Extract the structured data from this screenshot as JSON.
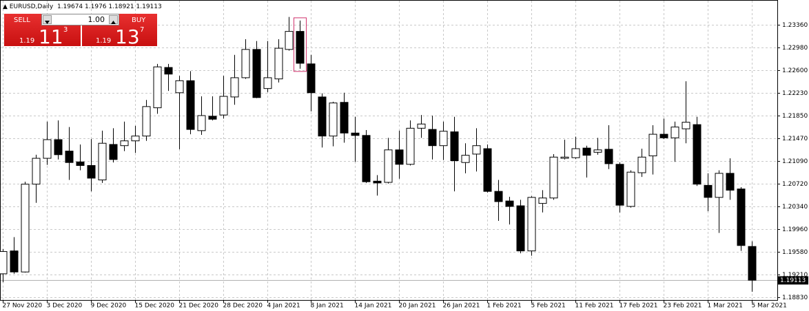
{
  "header": {
    "symbol": "EURUSD,Daily"
  },
  "trade_panel": {
    "sell": "SELL",
    "buy": "BUY",
    "lot": "1.00",
    "sell_price": {
      "prefix": "1.19",
      "big": "11",
      "small": "3"
    },
    "buy_price": {
      "prefix": "1.19",
      "big": "13",
      "small": "7"
    }
  },
  "chart_data": {
    "type": "candlestick",
    "categories": [
      "27 Nov 2020",
      null,
      null,
      null,
      "3 Dec 2020",
      null,
      null,
      null,
      "9 Dec 2020",
      null,
      null,
      null,
      "15 Dec 2020",
      null,
      null,
      null,
      "21 Dec 2020",
      null,
      null,
      null,
      "28 Dec 2020",
      null,
      null,
      null,
      "4 Jan 2021",
      null,
      null,
      null,
      "8 Jan 2021",
      null,
      null,
      null,
      "14 Jan 2021",
      null,
      null,
      null,
      "20 Jan 2021",
      null,
      null,
      null,
      "26 Jan 2021",
      null,
      null,
      null,
      "1 Feb 2021",
      null,
      null,
      null,
      "5 Feb 2021",
      null,
      null,
      null,
      "11 Feb 2021",
      null,
      null,
      null,
      "17 Feb 2021",
      null,
      null,
      null,
      "23 Feb 2021",
      null,
      null,
      null,
      "1 Mar 2021",
      null,
      null,
      null,
      "5 Mar 2021"
    ],
    "open": [
      1.1922,
      1.196,
      1.1925,
      1.2071,
      1.2114,
      1.2145,
      1.2126,
      1.2108,
      1.2102,
      1.2078,
      1.2137,
      1.2135,
      1.2143,
      1.2151,
      1.2198,
      1.2265,
      1.2223,
      1.2243,
      1.216,
      1.2184,
      1.2186,
      1.2216,
      1.2248,
      1.2295,
      1.223,
      1.2246,
      1.2295,
      1.2325,
      1.2271,
      1.2216,
      1.2151,
      1.2207,
      1.2156,
      1.2152,
      1.2076,
      1.2074,
      1.2128,
      1.2104,
      1.2164,
      1.2162,
      1.2135,
      1.2158,
      1.2107,
      1.2121,
      1.213,
      1.2059,
      1.2043,
      1.2035,
      1.196,
      1.2039,
      1.2048,
      1.2114,
      1.2115,
      1.2131,
      1.2124,
      1.2129,
      1.2104,
      1.2034,
      1.209,
      1.2118,
      1.2154,
      1.2148,
      1.2163,
      1.217,
      1.2069,
      1.2049,
      1.2089,
      1.2063,
      1.19674
    ],
    "high": [
      1.1963,
      1.1983,
      1.2075,
      1.212,
      1.2175,
      1.2177,
      1.2166,
      1.2137,
      1.2146,
      1.216,
      1.2164,
      1.2175,
      1.2168,
      1.2211,
      1.2271,
      1.2271,
      1.2251,
      1.2259,
      1.2217,
      1.2217,
      1.2251,
      1.2286,
      1.2312,
      1.2309,
      1.2309,
      1.2312,
      1.2349,
      1.2343,
      1.2286,
      1.2222,
      1.2208,
      1.2223,
      1.2183,
      1.2161,
      1.2086,
      1.2148,
      1.216,
      1.2177,
      1.2186,
      1.2185,
      1.2175,
      1.2183,
      1.2139,
      1.2164,
      1.2137,
      1.2078,
      1.205,
      1.2045,
      1.2051,
      1.2061,
      1.2121,
      1.2145,
      1.215,
      1.2135,
      1.2148,
      1.2169,
      1.2107,
      1.2094,
      1.213,
      1.2169,
      1.218,
      1.2175,
      1.2242,
      1.2183,
      1.2089,
      1.2094,
      1.2114,
      1.2066,
      1.1976
    ],
    "low": [
      1.1908,
      1.1922,
      1.1924,
      1.204,
      1.2103,
      1.2112,
      1.2078,
      1.2094,
      1.2059,
      1.2073,
      1.2107,
      1.2126,
      1.2123,
      1.2143,
      1.2188,
      1.2226,
      1.2129,
      1.2154,
      1.2153,
      1.2177,
      1.218,
      1.2203,
      1.2246,
      1.2214,
      1.2224,
      1.224,
      1.2293,
      1.2263,
      1.2192,
      1.2132,
      1.2134,
      1.214,
      1.2108,
      1.2073,
      1.2052,
      1.2072,
      1.208,
      1.2102,
      1.2148,
      1.2112,
      1.2111,
      1.2059,
      1.2089,
      1.2092,
      1.2057,
      1.201,
      1.2004,
      1.1956,
      1.1952,
      1.2024,
      1.2045,
      1.2112,
      1.2113,
      1.2082,
      1.212,
      1.2096,
      1.2024,
      1.2032,
      1.2083,
      1.2087,
      1.2146,
      1.2108,
      1.2139,
      1.2068,
      1.2026,
      1.199,
      1.2045,
      1.196,
      1.18921
    ],
    "close": [
      1.1959,
      1.1925,
      1.2071,
      1.2114,
      1.2145,
      1.212,
      1.2107,
      1.2102,
      1.2081,
      1.2139,
      1.2112,
      1.2143,
      1.2151,
      1.22,
      1.2266,
      1.2254,
      1.2243,
      1.2162,
      1.2185,
      1.2179,
      1.2217,
      1.2248,
      1.2295,
      1.2215,
      1.2248,
      1.2297,
      1.2325,
      1.2272,
      1.2223,
      1.2151,
      1.2206,
      1.2156,
      1.2152,
      1.2075,
      1.2073,
      1.2128,
      1.2104,
      1.2164,
      1.2171,
      1.2135,
      1.2159,
      1.211,
      1.2119,
      1.2135,
      1.2059,
      1.2042,
      1.2034,
      1.196,
      1.2049,
      1.2048,
      1.2116,
      1.2116,
      1.213,
      1.2119,
      1.2128,
      1.2105,
      1.2036,
      1.2091,
      1.2116,
      1.2154,
      1.2148,
      1.2166,
      1.2174,
      1.2071,
      1.2049,
      1.2089,
      1.2061,
      1.1969,
      1.19113
    ],
    "ylim": [
      1.18784,
      1.23772
    ],
    "yticks": [
      {
        "value": 1.2336,
        "label": "1.23360"
      },
      {
        "value": 1.2298,
        "label": "1.22980"
      },
      {
        "value": 1.226,
        "label": "1.22600"
      },
      {
        "value": 1.2223,
        "label": "1.22230"
      },
      {
        "value": 1.2185,
        "label": "1.21850"
      },
      {
        "value": 1.2147,
        "label": "1.21470"
      },
      {
        "value": 1.2109,
        "label": "1.21090"
      },
      {
        "value": 1.2072,
        "label": "1.20720"
      },
      {
        "value": 1.2034,
        "label": "1.20340"
      },
      {
        "value": 1.1996,
        "label": "1.19960"
      },
      {
        "value": 1.1958,
        "label": "1.19580"
      },
      {
        "value": 1.1921,
        "label": "1.19210"
      },
      {
        "value": 1.1883,
        "label": "1.18830"
      }
    ],
    "grid": true,
    "up_color": "#ffffff",
    "down_color": "#000000"
  }
}
